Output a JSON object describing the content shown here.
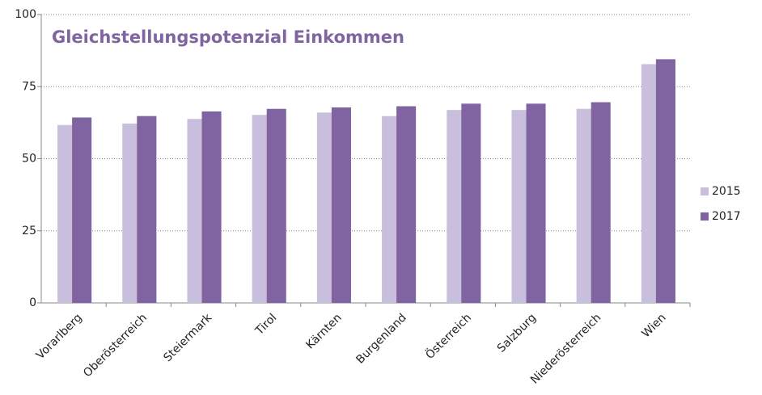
{
  "chart_data": {
    "type": "bar",
    "title": "Gleichstellungspotenzial Einkommen",
    "categories": [
      "Vorarlberg",
      "Oberösterreich",
      "Steiermark",
      "Tirol",
      "Kärnten",
      "Burgenland",
      "Österreich",
      "Salzburg",
      "Niederösterreich",
      "Wien"
    ],
    "series": [
      {
        "name": "2015",
        "color": "#c9bfdc",
        "values": [
          61.7,
          62.2,
          63.8,
          65.2,
          66.0,
          64.8,
          66.9,
          66.9,
          67.3,
          82.8
        ]
      },
      {
        "name": "2017",
        "color": "#8064a2",
        "values": [
          64.3,
          64.8,
          66.4,
          67.3,
          67.8,
          68.2,
          69.1,
          69.1,
          69.6,
          84.5
        ]
      }
    ],
    "ylim": [
      0,
      100
    ],
    "yticks": [
      0,
      25,
      50,
      75,
      100
    ],
    "grid": true,
    "legend": "right"
  }
}
